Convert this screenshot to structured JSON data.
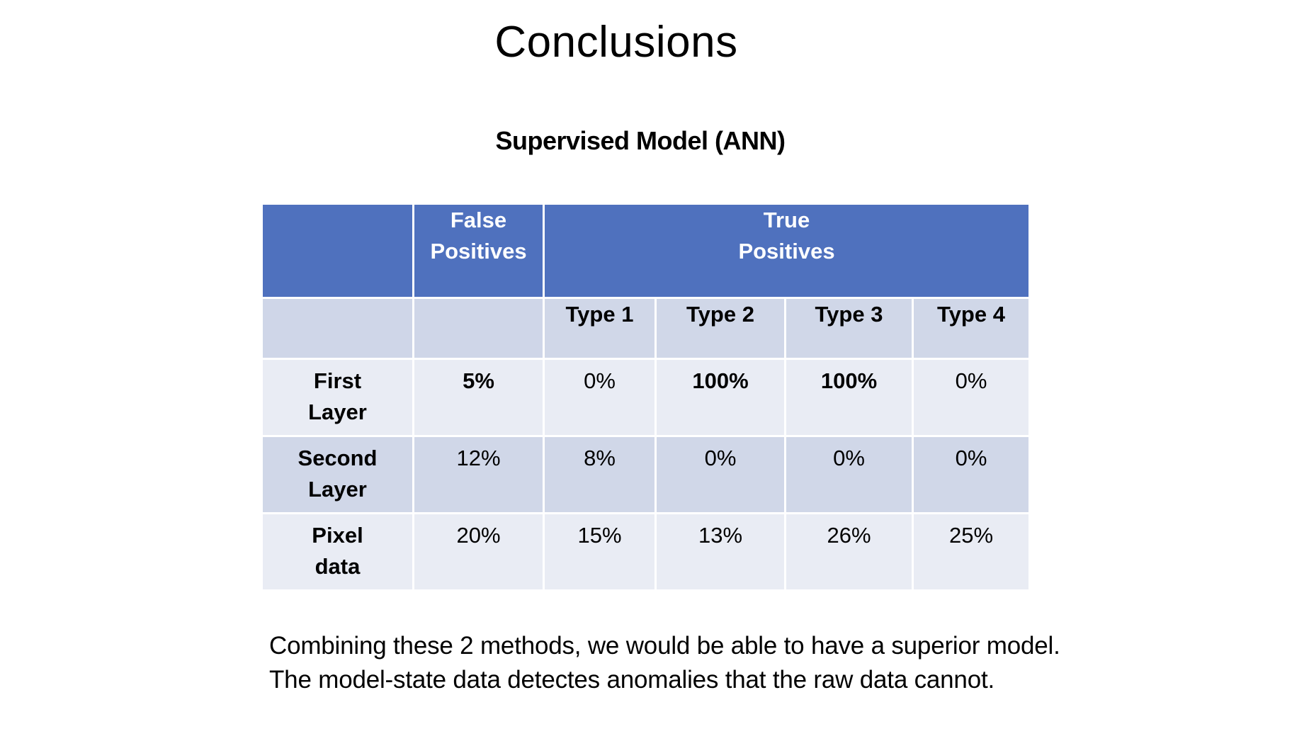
{
  "slide": {
    "title": "Conclusions",
    "table_heading": "Supervised Model (ANN)"
  },
  "table": {
    "header": {
      "corner": "",
      "false_positives": "False\nPositives",
      "true_positives": "True\nPositives"
    },
    "subheader": {
      "corner": "",
      "false_positives": "",
      "types": [
        "Type 1",
        "Type 2",
        "Type 3",
        "Type 4"
      ]
    },
    "rows": [
      {
        "label": "First\nLayer",
        "false_positives": "5%",
        "types": [
          "0%",
          "100%",
          "100%",
          "0%"
        ]
      },
      {
        "label": "Second\nLayer",
        "false_positives": "12%",
        "types": [
          "8%",
          "0%",
          "0%",
          "0%"
        ]
      },
      {
        "label": "Pixel\ndata",
        "false_positives": "20%",
        "types": [
          "15%",
          "13%",
          "26%",
          "25%"
        ]
      }
    ]
  },
  "conclusion_text": "Combining these 2 methods, we  would be able to have a superior model. The model-state data detectes anomalies that the raw data cannot."
}
